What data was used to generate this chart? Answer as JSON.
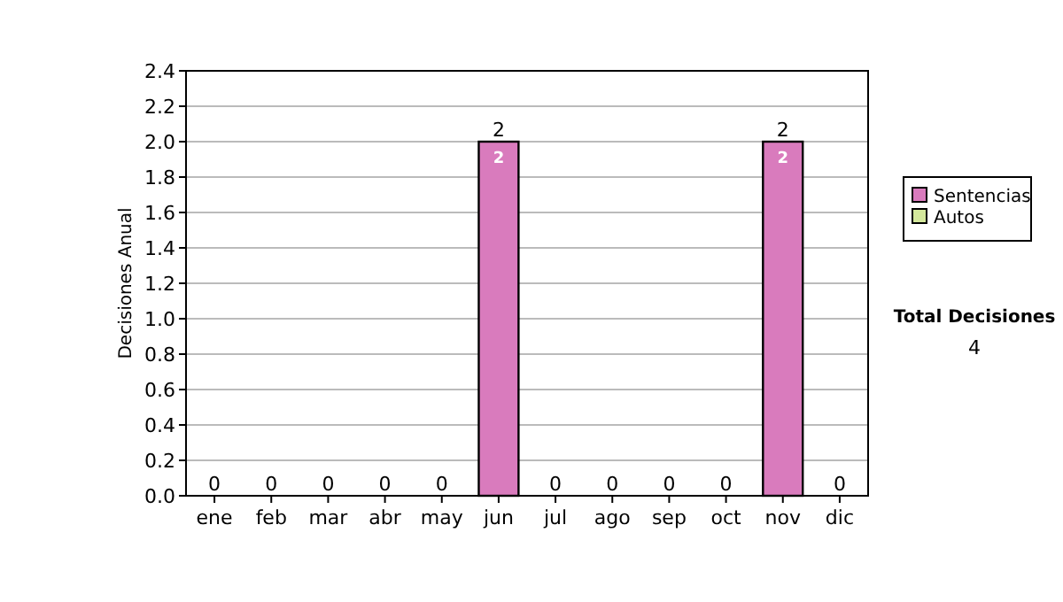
{
  "chart_data": {
    "type": "bar",
    "stacked": true,
    "ylabel": "Decisiones Anual",
    "categories": [
      "ene",
      "feb",
      "mar",
      "abr",
      "may",
      "jun",
      "jul",
      "ago",
      "sep",
      "oct",
      "nov",
      "dic"
    ],
    "series": [
      {
        "name": "Sentencias",
        "color": "#d97bbd",
        "values": [
          0,
          0,
          0,
          0,
          0,
          2,
          0,
          0,
          0,
          0,
          2,
          0
        ],
        "value_labels": [
          null,
          null,
          null,
          null,
          null,
          "2",
          null,
          null,
          null,
          null,
          "2",
          null
        ]
      },
      {
        "name": "Autos",
        "color": "#d4e89c",
        "values": [
          0,
          0,
          0,
          0,
          0,
          0,
          0,
          0,
          0,
          0,
          0,
          0
        ]
      }
    ],
    "totals": [
      "0",
      "0",
      "0",
      "0",
      "0",
      "2",
      "0",
      "0",
      "0",
      "0",
      "2",
      "0"
    ],
    "ylim": [
      0,
      2.4
    ],
    "yticks": [
      {
        "value": 0,
        "label": "0.0"
      },
      {
        "value": 0.2,
        "label": "0.2"
      },
      {
        "value": 0.4,
        "label": "0.4"
      },
      {
        "value": 0.6,
        "label": "0.6"
      },
      {
        "value": 0.8,
        "label": "0.8"
      },
      {
        "value": 1,
        "label": "1.0"
      },
      {
        "value": 1.2,
        "label": "1.2"
      },
      {
        "value": 1.4,
        "label": "1.4"
      },
      {
        "value": 1.6,
        "label": "1.6"
      },
      {
        "value": 1.8,
        "label": "1.8"
      },
      {
        "value": 2,
        "label": "2.0"
      },
      {
        "value": 2.2,
        "label": "2.2"
      },
      {
        "value": 2.4,
        "label": "2.4"
      }
    ],
    "grid": "y",
    "legend": "right",
    "annotations": [
      "Total Decisiones",
      "4"
    ]
  }
}
